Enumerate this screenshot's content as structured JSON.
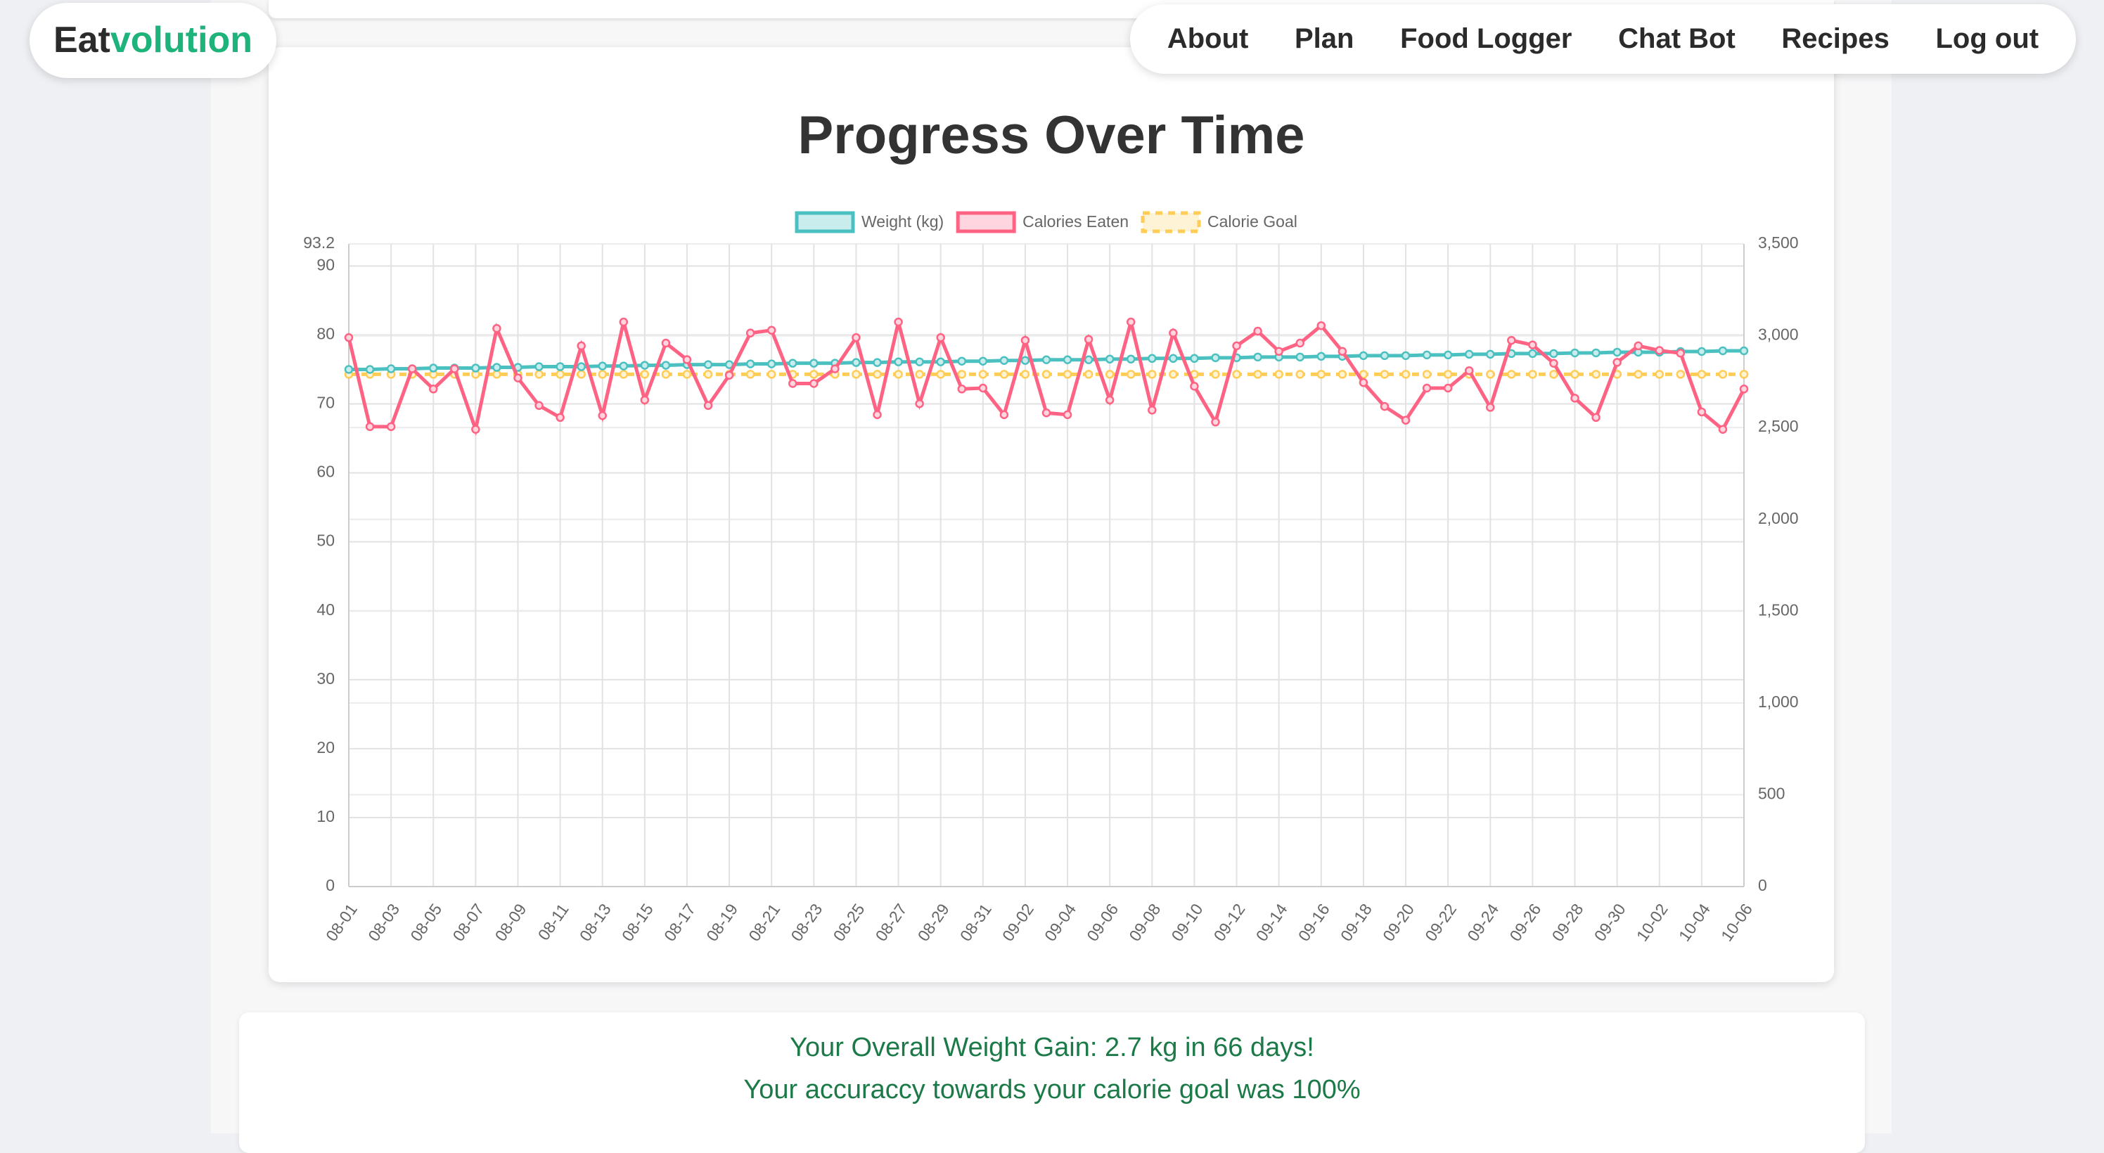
{
  "header": {
    "logo_dark": "Eat",
    "logo_green": "volution",
    "nav": [
      "About",
      "Plan",
      "Food Logger",
      "Chat Bot",
      "Recipes",
      "Log out"
    ]
  },
  "chart_data": {
    "type": "line",
    "title": "Progress Over Time",
    "categories": [
      "08-01",
      null,
      "08-03",
      null,
      "08-05",
      null,
      "08-07",
      null,
      "08-09",
      null,
      "08-11",
      null,
      "08-13",
      null,
      "08-15",
      null,
      "08-17",
      null,
      "08-19",
      null,
      "08-21",
      null,
      "08-23",
      null,
      "08-25",
      null,
      "08-27",
      null,
      "08-29",
      null,
      "08-31",
      null,
      "09-02",
      null,
      "09-04",
      null,
      "09-06",
      null,
      "09-08",
      null,
      "09-10",
      null,
      "09-12",
      null,
      "09-14",
      null,
      "09-16",
      null,
      "09-18",
      null,
      "09-20",
      null,
      "09-22",
      null,
      "09-24",
      null,
      "09-26",
      null,
      "09-28",
      null,
      "09-30",
      null,
      "10-02",
      null,
      "10-04",
      null,
      "10-06"
    ],
    "series": [
      {
        "name": "Weight (kg)",
        "color": "#4bc0c0",
        "fill": "#c9ecec",
        "values": [
          75.0,
          75.0,
          75.1,
          75.1,
          75.2,
          75.2,
          75.2,
          75.3,
          75.3,
          75.4,
          75.4,
          75.4,
          75.5,
          75.5,
          75.6,
          75.6,
          75.7,
          75.7,
          75.7,
          75.8,
          75.8,
          75.9,
          75.9,
          75.9,
          76.0,
          76.0,
          76.1,
          76.1,
          76.1,
          76.2,
          76.2,
          76.3,
          76.3,
          76.4,
          76.4,
          76.4,
          76.5,
          76.5,
          76.6,
          76.6,
          76.6,
          76.7,
          76.7,
          76.8,
          76.8,
          76.8,
          76.9,
          76.9,
          77.0,
          77.0,
          77.0,
          77.1,
          77.1,
          77.2,
          77.2,
          77.3,
          77.3,
          77.3,
          77.4,
          77.4,
          77.5,
          77.5,
          77.5,
          77.6,
          77.6,
          77.7,
          77.7
        ]
      },
      {
        "name": "Calories Eaten",
        "color": "#ff6384",
        "fill": "#ffd6df",
        "axis": "y2",
        "values": [
          2990,
          2505,
          2505,
          2820,
          2710,
          2820,
          2490,
          3040,
          2770,
          2620,
          2555,
          2945,
          2565,
          3075,
          2650,
          2960,
          2870,
          2620,
          2785,
          3015,
          3030,
          2740,
          2740,
          2820,
          2990,
          2570,
          3075,
          2630,
          2990,
          2710,
          2715,
          2570,
          2975,
          2580,
          2570,
          2980,
          2650,
          3075,
          2595,
          3015,
          2725,
          2530,
          2945,
          3025,
          2915,
          2960,
          3055,
          2915,
          2745,
          2615,
          2540,
          2715,
          2715,
          2810,
          2610,
          2975,
          2950,
          2850,
          2660,
          2555,
          2855,
          2945,
          2920,
          2905,
          2585,
          2490,
          2710
        ]
      },
      {
        "name": "Calorie Goal",
        "color": "#ffcd56",
        "fill": "#fff3d6",
        "axis": "y2",
        "dashed": true,
        "values": [
          2790,
          2790,
          2790,
          2790,
          2790,
          2790,
          2790,
          2790,
          2790,
          2790,
          2790,
          2790,
          2790,
          2790,
          2790,
          2790,
          2790,
          2790,
          2790,
          2790,
          2790,
          2790,
          2790,
          2790,
          2790,
          2790,
          2790,
          2790,
          2790,
          2790,
          2790,
          2790,
          2790,
          2790,
          2790,
          2790,
          2790,
          2790,
          2790,
          2790,
          2790,
          2790,
          2790,
          2790,
          2790,
          2790,
          2790,
          2790,
          2790,
          2790,
          2790,
          2790,
          2790,
          2790,
          2790,
          2790,
          2790,
          2790,
          2790,
          2790,
          2790,
          2790,
          2790,
          2790,
          2790,
          2790,
          2790
        ]
      }
    ],
    "ylim": [
      0,
      93.2
    ],
    "yticks": [
      0,
      10,
      20,
      30,
      40,
      50,
      60,
      70,
      80,
      90,
      93.2
    ],
    "y2lim": [
      0,
      3500
    ],
    "y2ticks": [
      0,
      500,
      {
        "value": 1000,
        "label": "1,000"
      },
      {
        "value": 1500,
        "label": "1,500"
      },
      {
        "value": 2000,
        "label": "2,000"
      },
      {
        "value": 2500,
        "label": "2,500"
      },
      {
        "value": 3000,
        "label": "3,000"
      },
      {
        "value": 3500,
        "label": "3,500"
      }
    ],
    "grid": true,
    "legend": "top"
  },
  "summary": {
    "line1": "Your Overall Weight Gain: 2.7 kg in 66 days!",
    "line2": "Your accuraccy towards your calorie goal was 100%"
  }
}
